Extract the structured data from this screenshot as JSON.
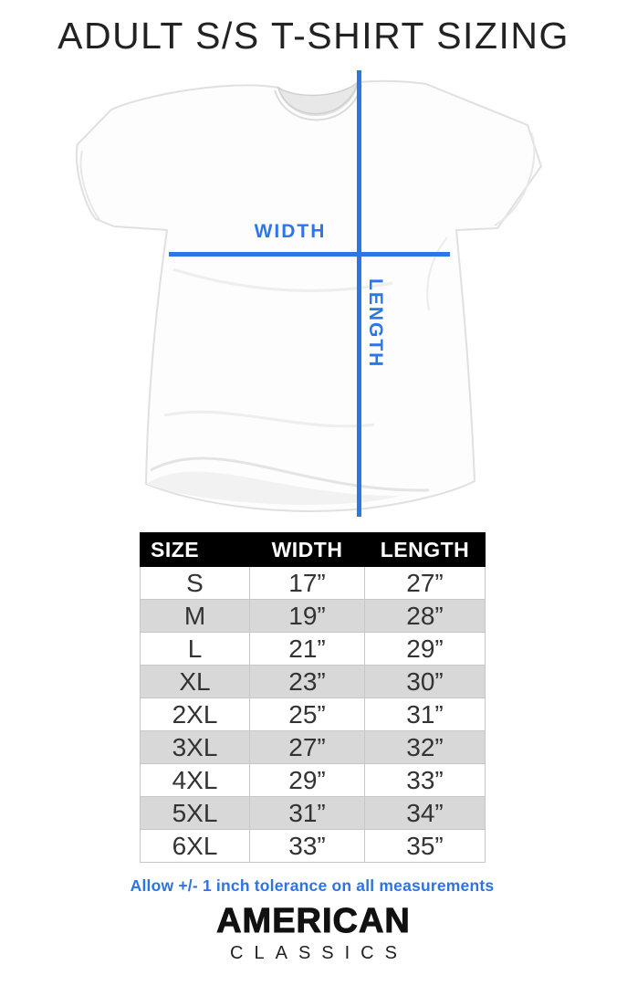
{
  "page": {
    "title": "ADULT S/S T-SHIRT SIZING"
  },
  "diagram": {
    "width_label": "WIDTH",
    "length_label": "LENGTH",
    "accent_color": "#2d76e9"
  },
  "chart_data": {
    "type": "table",
    "title": "ADULT S/S T-SHIRT SIZING",
    "columns": [
      "SIZE",
      "WIDTH",
      "LENGTH"
    ],
    "rows": [
      [
        "S",
        "17”",
        "27”"
      ],
      [
        "M",
        "19”",
        "28”"
      ],
      [
        "L",
        "21”",
        "29”"
      ],
      [
        "XL",
        "23”",
        "30”"
      ],
      [
        "2XL",
        "25”",
        "31”"
      ],
      [
        "3XL",
        "27”",
        "32”"
      ],
      [
        "4XL",
        "29”",
        "33”"
      ],
      [
        "5XL",
        "31”",
        "34”"
      ],
      [
        "6XL",
        "33”",
        "35”"
      ]
    ],
    "header_bg": "#000000",
    "header_text_color": "#ffffff",
    "alt_row_color": "#d8d8d8",
    "note": "Allow +/- 1 inch tolerance on all measurements"
  },
  "footer": {
    "tolerance_note": "Allow +/- 1 inch tolerance on all measurements",
    "brand_line1": "AMERICAN",
    "brand_line2": "CLASSICS"
  }
}
